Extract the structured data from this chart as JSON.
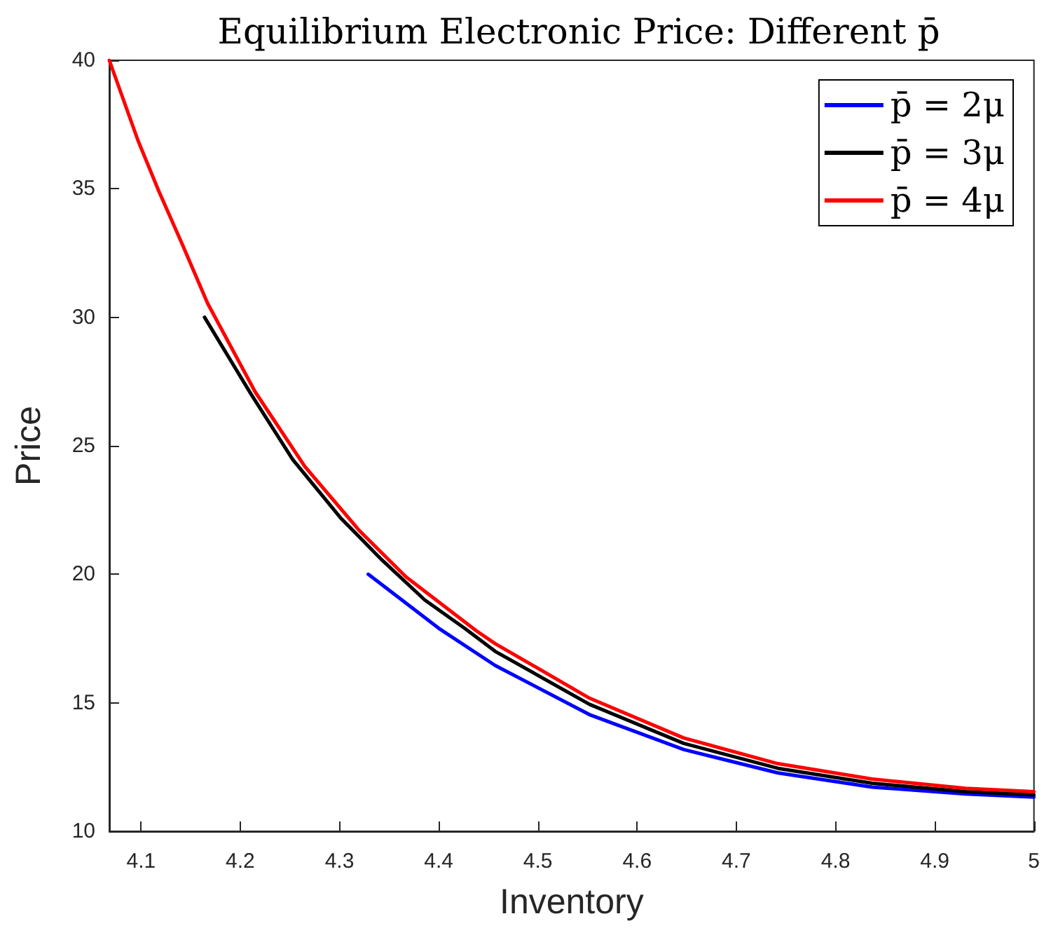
{
  "chart_data": {
    "type": "line",
    "title": "Equilibrium Electronic Price: Different p̄",
    "xlabel": "Inventory",
    "ylabel": "Price",
    "xlim": [
      4.068,
      5
    ],
    "xticks": [
      4.1,
      4.2,
      4.3,
      4.4,
      4.5,
      4.6,
      4.7,
      4.8,
      4.9,
      5
    ],
    "ylim": [
      10,
      40
    ],
    "yticks": [
      10,
      15,
      20,
      25,
      30,
      35,
      40
    ],
    "grid": false,
    "legend": "top right",
    "marker": "none",
    "line_style": "solid",
    "series": [
      {
        "name": "p̄ = 2μ",
        "color": "#0000ff",
        "x": [
          4.329,
          4.4,
          4.457,
          4.552,
          4.647,
          4.742,
          4.837,
          4.931,
          5.0
        ],
        "values": [
          20.0,
          17.9,
          16.45,
          14.54,
          13.18,
          12.27,
          11.72,
          11.45,
          11.33
        ]
      },
      {
        "name": "p̄ = 3μ",
        "color": "#000000",
        "x": [
          4.164,
          4.211,
          4.253,
          4.301,
          4.343,
          4.386,
          4.426,
          4.457,
          4.552,
          4.647,
          4.742,
          4.837,
          4.931,
          5.0
        ],
        "values": [
          30.0,
          27.0,
          24.46,
          22.2,
          20.55,
          19.0,
          17.9,
          17.0,
          14.94,
          13.42,
          12.45,
          11.87,
          11.54,
          11.42
        ]
      },
      {
        "name": "p̄ = 4μ",
        "color": "#ff0000",
        "x": [
          4.068,
          4.097,
          4.118,
          4.142,
          4.167,
          4.215,
          4.265,
          4.32,
          4.367,
          4.438,
          4.457,
          4.552,
          4.647,
          4.742,
          4.837,
          4.931,
          5.0
        ],
        "values": [
          40.0,
          36.87,
          34.9,
          32.8,
          30.55,
          27.1,
          24.2,
          21.7,
          19.9,
          17.8,
          17.3,
          15.18,
          13.63,
          12.63,
          12.03,
          11.67,
          11.54
        ]
      }
    ]
  }
}
